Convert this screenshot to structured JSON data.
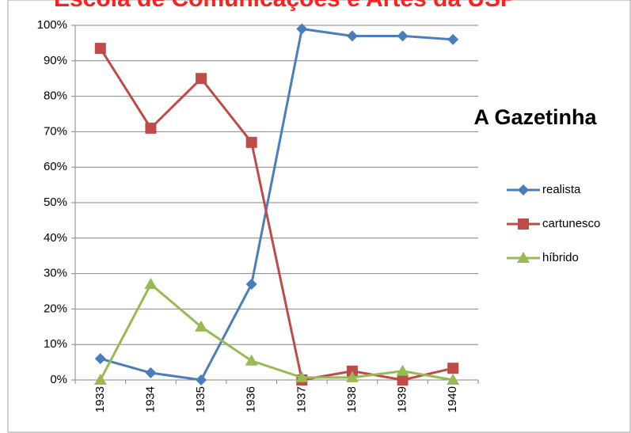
{
  "chart_data": {
    "type": "line",
    "title": "Escola de Comunicações e Artes da USP",
    "annotation": "A Gazetinha",
    "categories": [
      "1933",
      "1934",
      "1935",
      "1936",
      "1937",
      "1938",
      "1939",
      "1940"
    ],
    "series": [
      {
        "name": "realista",
        "color": "#4a7ebb",
        "marker": "diamond",
        "values": [
          6,
          2,
          0,
          27,
          99,
          97,
          97,
          96
        ]
      },
      {
        "name": "cartunesco",
        "color": "#be4b48",
        "marker": "square",
        "values": [
          93.5,
          71,
          85,
          67,
          0,
          2.5,
          0,
          3.3
        ]
      },
      {
        "name": "híbrido",
        "color": "#98b954",
        "marker": "triangle",
        "values": [
          0,
          27,
          15,
          5.4,
          0.7,
          0.7,
          2.5,
          0
        ]
      }
    ],
    "ylim": [
      0,
      100
    ],
    "yticks": [
      {
        "value": 0,
        "label": "0%"
      },
      {
        "value": 10,
        "label": "10%"
      },
      {
        "value": 20,
        "label": "20%"
      },
      {
        "value": 30,
        "label": "30%"
      },
      {
        "value": 40,
        "label": "40%"
      },
      {
        "value": 50,
        "label": "50%"
      },
      {
        "value": 60,
        "label": "60%"
      },
      {
        "value": 70,
        "label": "70%"
      },
      {
        "value": 80,
        "label": "80%"
      },
      {
        "value": 90,
        "label": "90%"
      },
      {
        "value": 100,
        "label": "100%"
      }
    ],
    "grid": true,
    "legend": "right"
  }
}
